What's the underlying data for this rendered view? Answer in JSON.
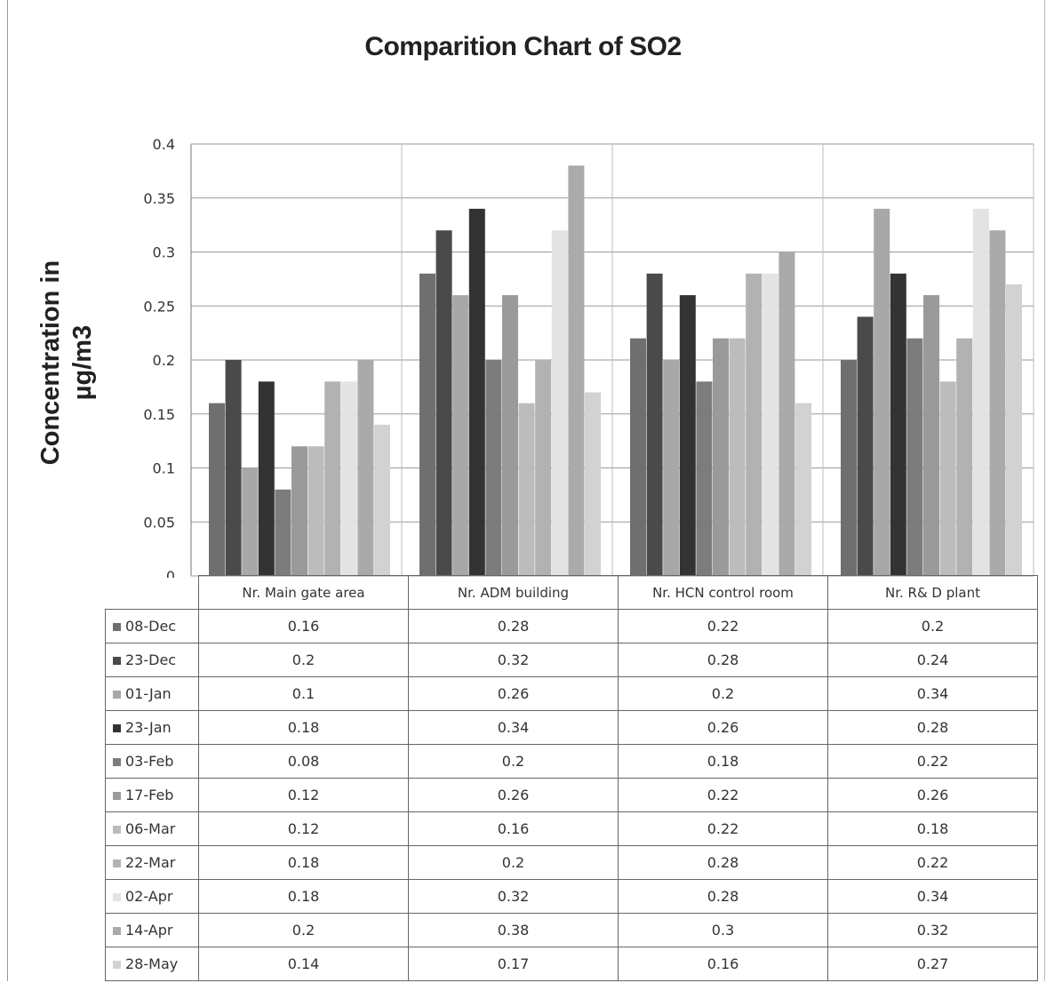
{
  "chart_data": {
    "type": "bar",
    "title": "Comparition Chart of SO2",
    "ylabel": "Concentration in\nµg/m3",
    "xlabel": "",
    "ylim": [
      0,
      0.4
    ],
    "yticks": [
      "0",
      "0.05",
      "0.1",
      "0.15",
      "0.2",
      "0.25",
      "0.3",
      "0.35",
      "0.4"
    ],
    "categories": [
      "Nr. Main gate area",
      "Nr. ADM building",
      "Nr. HCN control room",
      "Nr. R& D plant"
    ],
    "grid": true,
    "legend": "data-table",
    "series": [
      {
        "name": "08-Dec",
        "color": "#6f6f6f",
        "values": [
          0.16,
          0.28,
          0.22,
          0.2
        ]
      },
      {
        "name": "23-Dec",
        "color": "#4a4a4a",
        "values": [
          0.2,
          0.32,
          0.28,
          0.24
        ]
      },
      {
        "name": "01-Jan",
        "color": "#a8a8a8",
        "values": [
          0.1,
          0.26,
          0.2,
          0.34
        ]
      },
      {
        "name": "23-Jan",
        "color": "#333333",
        "values": [
          0.18,
          0.34,
          0.26,
          0.28
        ]
      },
      {
        "name": "03-Feb",
        "color": "#7c7c7c",
        "values": [
          0.08,
          0.2,
          0.18,
          0.22
        ]
      },
      {
        "name": "17-Feb",
        "color": "#9a9a9a",
        "values": [
          0.12,
          0.26,
          0.22,
          0.26
        ]
      },
      {
        "name": "06-Mar",
        "color": "#bcbcbc",
        "values": [
          0.12,
          0.16,
          0.22,
          0.18
        ]
      },
      {
        "name": "22-Mar",
        "color": "#b2b2b2",
        "values": [
          0.18,
          0.2,
          0.28,
          0.22
        ]
      },
      {
        "name": "02-Apr",
        "color": "#e3e3e3",
        "values": [
          0.18,
          0.32,
          0.28,
          0.34
        ]
      },
      {
        "name": "14-Apr",
        "color": "#aaaaaa",
        "values": [
          0.2,
          0.38,
          0.3,
          0.32
        ]
      },
      {
        "name": "28-May",
        "color": "#d2d2d2",
        "values": [
          0.14,
          0.17,
          0.16,
          0.27
        ]
      }
    ]
  }
}
